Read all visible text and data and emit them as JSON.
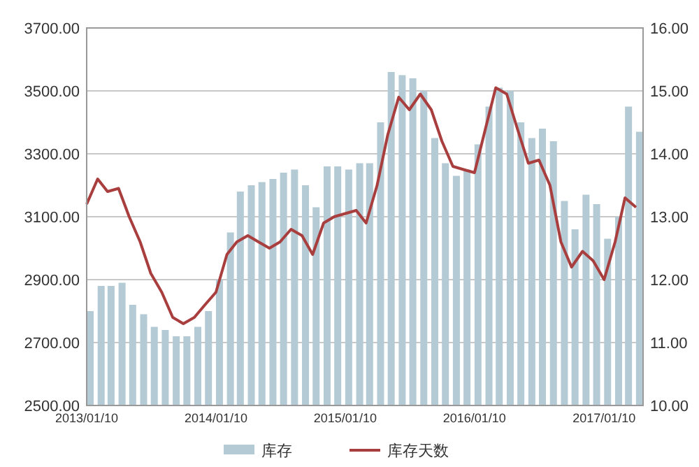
{
  "chart_data": {
    "type": "bar",
    "x": [
      "2013-01-10",
      "2013-02-10",
      "2013-03-10",
      "2013-04-10",
      "2013-05-10",
      "2013-06-10",
      "2013-07-10",
      "2013-08-10",
      "2013-09-10",
      "2013-10-10",
      "2013-11-10",
      "2013-12-10",
      "2014-01-10",
      "2014-02-10",
      "2014-03-10",
      "2014-04-10",
      "2014-05-10",
      "2014-06-10",
      "2014-07-10",
      "2014-08-10",
      "2014-09-10",
      "2014-10-10",
      "2014-11-10",
      "2014-12-10",
      "2015-01-10",
      "2015-02-10",
      "2015-03-10",
      "2015-04-10",
      "2015-05-10",
      "2015-06-10",
      "2015-07-10",
      "2015-08-10",
      "2015-09-10",
      "2015-10-10",
      "2015-11-10",
      "2015-12-10",
      "2016-01-10",
      "2016-02-10",
      "2016-03-10",
      "2016-04-10",
      "2016-05-10",
      "2016-06-10",
      "2016-07-10",
      "2016-08-10",
      "2016-09-10",
      "2016-10-10",
      "2016-11-10",
      "2016-12-10",
      "2017-01-10",
      "2017-02-10",
      "2017-03-10",
      "2017-04-10"
    ],
    "series": [
      {
        "name": "库存",
        "color": "#b4cad4",
        "values": [
          2800,
          2880,
          2880,
          2890,
          2820,
          2790,
          2750,
          2740,
          2720,
          2720,
          2750,
          2800,
          2900,
          3050,
          3180,
          3200,
          3210,
          3220,
          3240,
          3250,
          3200,
          3130,
          3260,
          3260,
          3250,
          3270,
          3270,
          3400,
          3560,
          3550,
          3540,
          3500,
          3350,
          3270,
          3230,
          3250,
          3330,
          3450,
          3510,
          3500,
          3400,
          3350,
          3380,
          3340,
          3150,
          3060,
          3170,
          3140,
          3030,
          3100,
          3450,
          3370
        ]
      },
      {
        "name": "库存天数",
        "type": "line",
        "axis": "y2",
        "color": "#a83e3e",
        "values": [
          13.2,
          13.6,
          13.4,
          13.45,
          13.0,
          12.6,
          12.1,
          11.8,
          11.4,
          11.3,
          11.4,
          11.6,
          11.8,
          12.4,
          12.6,
          12.7,
          12.6,
          12.5,
          12.6,
          12.8,
          12.7,
          12.4,
          12.9,
          13.0,
          13.05,
          13.1,
          12.9,
          13.5,
          14.3,
          14.9,
          14.7,
          14.95,
          14.7,
          14.2,
          13.8,
          13.75,
          13.7,
          14.4,
          15.05,
          14.95,
          14.4,
          13.85,
          13.9,
          13.5,
          12.6,
          12.2,
          12.45,
          12.3,
          12.0,
          12.6,
          13.3,
          13.15
        ]
      }
    ],
    "xlim": [
      "2013-01-10",
      "2017-04-30"
    ],
    "xticks": [
      {
        "value": "2013-01-10",
        "label": "2013/01/10"
      },
      {
        "value": "2014-01-10",
        "label": "2014/01/10"
      },
      {
        "value": "2015-01-10",
        "label": "2015/01/10"
      },
      {
        "value": "2016-01-10",
        "label": "2016/01/10"
      },
      {
        "value": "2017-01-10",
        "label": "2017/01/10"
      }
    ],
    "ylim": [
      2500,
      3700
    ],
    "yticks": [
      {
        "value": 2500,
        "label": "2500.00"
      },
      {
        "value": 2700,
        "label": "2700.00"
      },
      {
        "value": 2900,
        "label": "2900.00"
      },
      {
        "value": 3100,
        "label": "3100.00"
      },
      {
        "value": 3300,
        "label": "3300.00"
      },
      {
        "value": 3500,
        "label": "3500.00"
      },
      {
        "value": 3700,
        "label": "3700.00"
      }
    ],
    "y2lim": [
      10,
      16
    ],
    "y2ticks": [
      {
        "value": 10,
        "label": "10.00"
      },
      {
        "value": 11,
        "label": "11.00"
      },
      {
        "value": 12,
        "label": "12.00"
      },
      {
        "value": 13,
        "label": "13.00"
      },
      {
        "value": 14,
        "label": "14.00"
      },
      {
        "value": 15,
        "label": "15.00"
      },
      {
        "value": 16,
        "label": "16.00"
      }
    ],
    "grid": "y",
    "legend": "bottom"
  }
}
